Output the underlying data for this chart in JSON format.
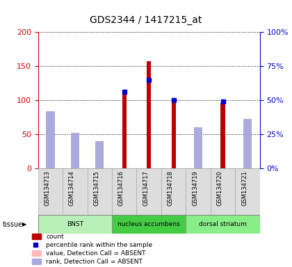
{
  "title": "GDS2344 / 1417215_at",
  "samples": [
    "GSM134713",
    "GSM134714",
    "GSM134715",
    "GSM134716",
    "GSM134717",
    "GSM134718",
    "GSM134719",
    "GSM134720",
    "GSM134721"
  ],
  "count_values": [
    0,
    0,
    0,
    108,
    157,
    98,
    0,
    96,
    0
  ],
  "percentile_rank_pct": [
    null,
    null,
    null,
    56,
    65,
    50,
    null,
    49,
    null
  ],
  "absent_value": [
    72,
    50,
    38,
    null,
    null,
    null,
    52,
    null,
    64
  ],
  "absent_rank_pct": [
    42,
    26,
    20,
    null,
    null,
    null,
    30,
    null,
    36
  ],
  "tissues": [
    {
      "label": "BNST",
      "start": 0,
      "end": 3
    },
    {
      "label": "nucleus accumbens",
      "start": 3,
      "end": 6
    },
    {
      "label": "dorsal striatum",
      "start": 6,
      "end": 9
    }
  ],
  "tissue_colors": [
    "#b8f0b8",
    "#44cc44",
    "#88ee88"
  ],
  "left_ylim": [
    0,
    200
  ],
  "right_ylim": [
    0,
    100
  ],
  "left_yticks": [
    0,
    50,
    100,
    150,
    200
  ],
  "right_yticks": [
    0,
    25,
    50,
    75,
    100
  ],
  "right_yticklabels": [
    "0%",
    "25%",
    "50%",
    "75%",
    "100%"
  ],
  "count_color": "#bb0000",
  "percentile_color": "#0000cc",
  "absent_value_color": "#ffbbbb",
  "absent_rank_color": "#aaaadd",
  "left_axis_color": "#cc0000",
  "right_axis_color": "#0000cc",
  "bar_width": 0.25
}
